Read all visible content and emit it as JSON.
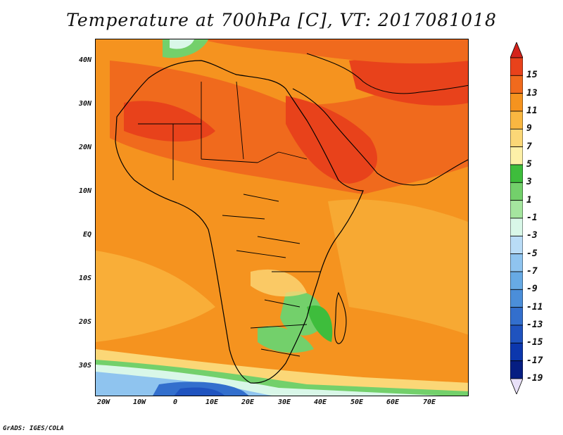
{
  "title": "Temperature at 700hPa [C], VT: 2017081018",
  "credit": "GrADS: IGES/COLA",
  "map": {
    "lon_range": [
      -23,
      80
    ],
    "lat_range": [
      -37,
      45
    ],
    "lat_labels": [
      "40N",
      "30N",
      "20N",
      "10N",
      "EQ",
      "10S",
      "20S",
      "30S"
    ],
    "lon_labels": [
      "20W",
      "10W",
      "0",
      "10E",
      "20E",
      "30E",
      "40E",
      "50E",
      "60E",
      "70E"
    ]
  },
  "colorbar": {
    "labels": [
      "15",
      "13",
      "11",
      "9",
      "7",
      "5",
      "3",
      "1",
      "-1",
      "-3",
      "-5",
      "-7",
      "-9",
      "-11",
      "-13",
      "-15",
      "-17",
      "-19"
    ],
    "colors": [
      "#e8421b",
      "#f06a1d",
      "#f5931f",
      "#f9b741",
      "#fbd777",
      "#fdf0a8",
      "#3ebd3c",
      "#73d06b",
      "#a5e59f",
      "#d9f7e8",
      "#b9dcf6",
      "#8fc4ef",
      "#67aae4",
      "#4b8ed9",
      "#336fcd",
      "#1f53bf",
      "#0c37ad",
      "#061e82"
    ],
    "arrow_top": "#d4231b",
    "arrow_bottom": "#e8e0f8"
  }
}
